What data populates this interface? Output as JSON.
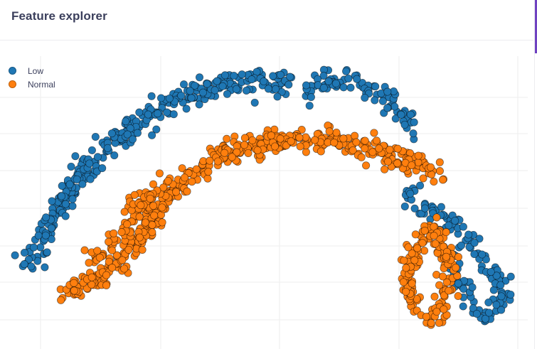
{
  "header": {
    "title": "Feature explorer"
  },
  "chart_data": {
    "type": "scatter",
    "title": "",
    "xlabel": "",
    "ylabel": "",
    "xlim": [
      0,
      16
    ],
    "ylim": [
      0,
      8
    ],
    "grid": true,
    "legend_position": "top-left",
    "series": [
      {
        "name": "Low",
        "color": "#1f77b4",
        "cluster_paths": [
          [
            [
              0.6,
              2.1
            ],
            [
              0.9,
              2.6
            ],
            [
              1.4,
              3.5
            ],
            [
              2.1,
              4.4
            ],
            [
              3.0,
              5.3
            ],
            [
              4.0,
              6.1
            ],
            [
              5.2,
              6.7
            ],
            [
              6.4,
              7.1
            ],
            [
              7.6,
              7.3
            ],
            [
              8.6,
              7.2
            ]
          ],
          [
            [
              9.2,
              6.5
            ],
            [
              9.3,
              7.1
            ],
            [
              10.0,
              7.3
            ],
            [
              11.0,
              7.2
            ],
            [
              11.8,
              6.7
            ],
            [
              12.6,
              5.9
            ]
          ],
          [
            [
              12.3,
              4.2
            ],
            [
              13.0,
              3.8
            ],
            [
              13.6,
              3.4
            ],
            [
              14.0,
              3.0
            ],
            [
              14.6,
              2.5
            ],
            [
              15.1,
              1.8
            ],
            [
              15.2,
              1.1
            ],
            [
              14.7,
              0.7
            ],
            [
              14.3,
              1.0
            ],
            [
              13.9,
              1.7
            ],
            [
              13.7,
              2.3
            ]
          ]
        ],
        "spread": [
          0.28,
          0.28,
          0.25
        ],
        "counts": [
          330,
          95,
          140
        ]
      },
      {
        "name": "Normal",
        "color": "#ff7f0e",
        "cluster_paths": [
          [
            [
              1.8,
              1.4
            ],
            [
              2.8,
              1.7
            ],
            [
              3.7,
              2.5
            ],
            [
              4.5,
              3.4
            ],
            [
              5.3,
              4.3
            ],
            [
              6.3,
              5.1
            ],
            [
              7.5,
              5.5
            ],
            [
              8.7,
              5.6
            ],
            [
              9.7,
              5.7
            ],
            [
              10.6,
              5.6
            ],
            [
              11.6,
              5.2
            ],
            [
              12.6,
              4.9
            ],
            [
              13.3,
              4.7
            ]
          ],
          [
            [
              2.5,
              2.2
            ],
            [
              3.2,
              2.6
            ],
            [
              3.9,
              3.6
            ],
            [
              4.8,
              4.4
            ]
          ],
          [
            [
              12.5,
              0.8
            ],
            [
              12.4,
              1.6
            ],
            [
              12.5,
              2.4
            ],
            [
              12.8,
              2.9
            ],
            [
              13.2,
              3.2
            ],
            [
              13.5,
              2.5
            ],
            [
              13.6,
              1.6
            ],
            [
              13.4,
              0.9
            ],
            [
              13.0,
              0.6
            ]
          ]
        ],
        "spread": [
          0.28,
          0.3,
          0.25
        ],
        "counts": [
          480,
          90,
          170
        ]
      }
    ]
  }
}
